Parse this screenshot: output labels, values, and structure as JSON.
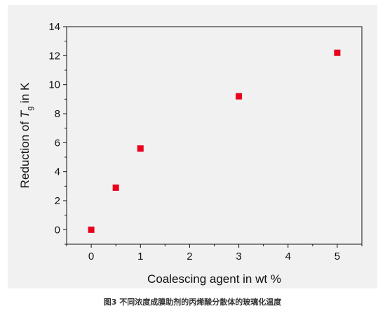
{
  "chart_data": {
    "type": "scatter",
    "x": [
      0,
      0.5,
      1,
      3,
      5
    ],
    "y": [
      0,
      2.9,
      5.6,
      9.2,
      12.2
    ],
    "xlabel": "Coalescing agent in wt %",
    "ylabel_prefix": "Reduction of ",
    "ylabel_symbol": "T",
    "ylabel_subscript": "g",
    "ylabel_suffix": " in K",
    "xlim": [
      -0.5,
      5.5
    ],
    "ylim": [
      -1,
      14
    ],
    "xticks": [
      0,
      1,
      2,
      3,
      4,
      5
    ],
    "yticks": [
      0,
      2,
      4,
      6,
      8,
      10,
      12,
      14
    ],
    "marker": "square",
    "marker_color": "#e8001c",
    "grid": false
  },
  "caption": "图3  不同浓度成膜助剂的丙烯酸分散体的玻璃化温度"
}
